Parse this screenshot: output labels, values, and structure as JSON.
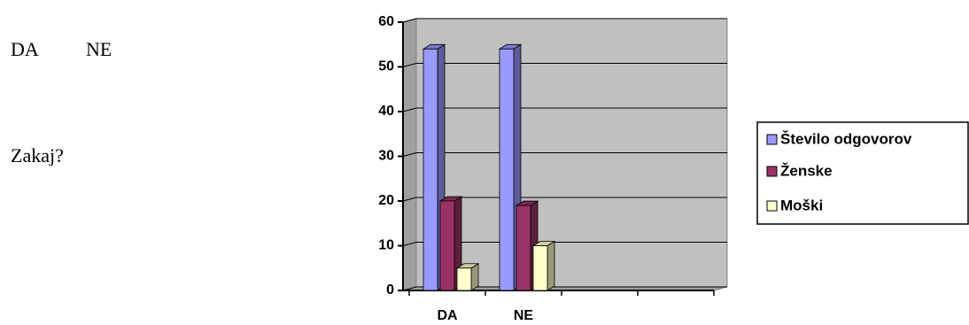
{
  "text": {
    "options": [
      "DA",
      "NE"
    ],
    "question": "Zakaj?"
  },
  "chart_data": {
    "type": "bar",
    "categories": [
      "DA",
      "NE",
      null,
      null
    ],
    "series": [
      {
        "name": "Število odgovorov",
        "color": "#9999ff",
        "values": [
          54,
          54,
          null,
          null
        ]
      },
      {
        "name": "Ženske",
        "color": "#993366",
        "values": [
          20,
          19,
          null,
          null
        ]
      },
      {
        "name": "Moški",
        "color": "#ffffcc",
        "values": [
          5,
          10,
          null,
          null
        ]
      }
    ],
    "ylim": [
      0,
      60
    ],
    "yticks": [
      0,
      10,
      20,
      30,
      40,
      50,
      60
    ],
    "grid": true,
    "legend": "right"
  }
}
